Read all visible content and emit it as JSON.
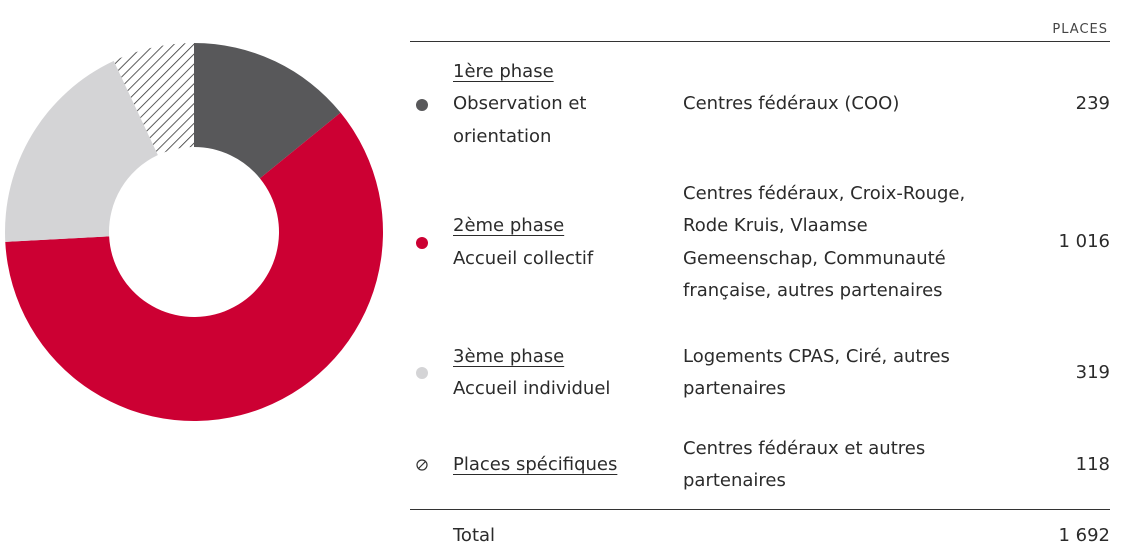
{
  "chart_data": {
    "type": "donut",
    "column_header": "PLACES",
    "categories": [
      "1ère phase",
      "2ème phase",
      "3ème phase",
      "Places spécifiques"
    ],
    "descriptions": [
      "Observation et orientation",
      "Accueil collectif",
      "Accueil individuel",
      null
    ],
    "partners": [
      "Centres fédéraux (COO)",
      "Centres fédéraux, Croix-Rouge, Rode Kruis, Vlaamse Gemeenschap, Communauté française, autres partenaires",
      "Logements CPAS, Ciré, autres partenaires",
      "Centres fédéraux et autres partenaires"
    ],
    "values": [
      239,
      1016,
      319,
      118
    ],
    "value_labels": [
      "239",
      "1 016",
      "319",
      "118"
    ],
    "colors": [
      "#58585a",
      "#cc0033",
      "#d4d4d6",
      "#333333"
    ],
    "patterns": [
      "solid",
      "solid",
      "solid",
      "hatch"
    ],
    "total": {
      "label": "Total",
      "value": 1692,
      "value_label": "1 692"
    }
  }
}
